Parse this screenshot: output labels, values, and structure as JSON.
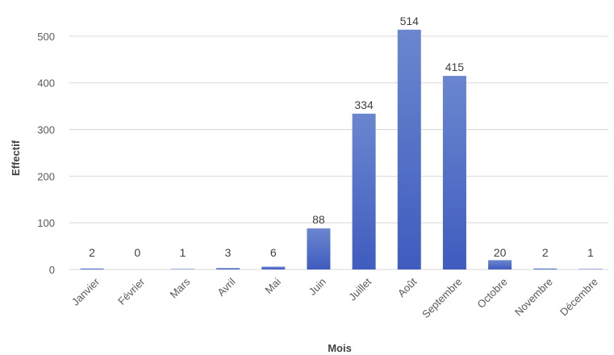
{
  "chart_data": {
    "type": "bar",
    "title": "",
    "xlabel": "Mois",
    "ylabel": "Effectif",
    "categories": [
      "Janvier",
      "Février",
      "Mars",
      "Avril",
      "Mai",
      "Juin",
      "Juillet",
      "Août",
      "Septembre",
      "Octobre",
      "Novembre",
      "Décembre"
    ],
    "values": [
      2,
      0,
      1,
      3,
      6,
      88,
      334,
      514,
      415,
      20,
      2,
      1
    ],
    "data_labels": [
      "2",
      "0",
      "1",
      "3",
      "6",
      "88",
      "334",
      "514",
      "415",
      "20",
      "2",
      "1"
    ],
    "ylim": [
      0,
      550
    ],
    "yticks": [
      0,
      100,
      200,
      300,
      400,
      500
    ],
    "ytick_labels": [
      "0",
      "100",
      "200",
      "300",
      "400",
      "500"
    ],
    "grid": true,
    "legend": "none",
    "colors": {
      "bar_top": "#6b86cf",
      "bar_bottom": "#3f5cbf"
    }
  }
}
